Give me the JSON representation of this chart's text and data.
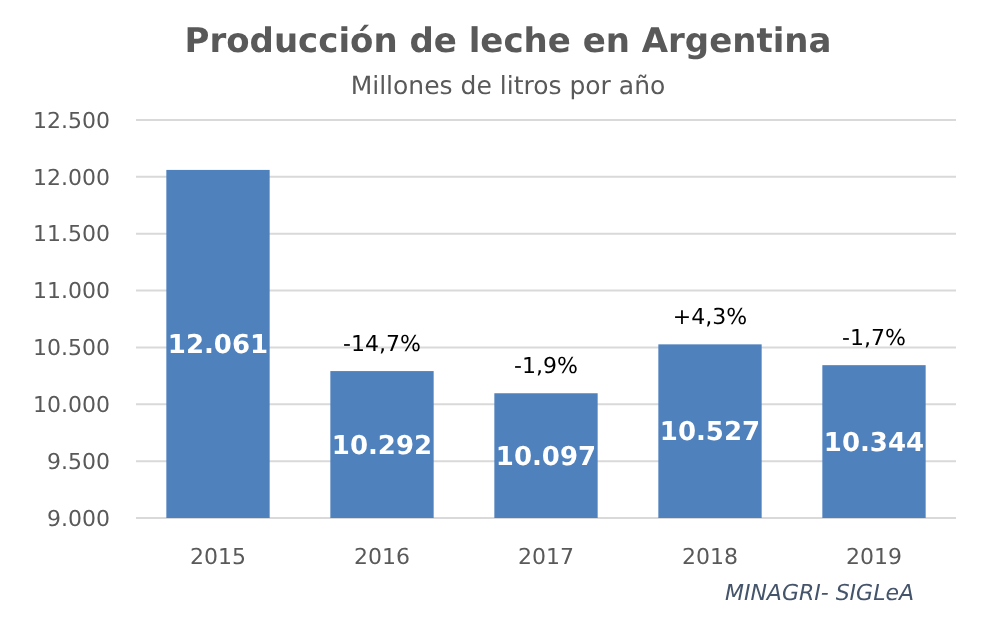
{
  "chart_data": {
    "type": "bar",
    "title": "Producción de leche en Argentina",
    "subtitle": "Millones de litros por año",
    "categories": [
      "2015",
      "2016",
      "2017",
      "2018",
      "2019"
    ],
    "values": [
      12061,
      10292,
      10097,
      10527,
      10344
    ],
    "color": "#4f81bd",
    "value_labels": [
      "12.061",
      "10.292",
      "10.097",
      "10.527",
      "10.344"
    ],
    "ylim": [
      9000,
      12500
    ],
    "yticks": [
      {
        "value": 9000,
        "label": "9.000"
      },
      {
        "value": 9500,
        "label": "9.500"
      },
      {
        "value": 10000,
        "label": "10.000"
      },
      {
        "value": 10500,
        "label": "10.500"
      },
      {
        "value": 11000,
        "label": "11.000"
      },
      {
        "value": 11500,
        "label": "11.500"
      },
      {
        "value": 12000,
        "label": "12.000"
      },
      {
        "value": 12500,
        "label": "12.500"
      }
    ],
    "grid": "y",
    "annotations": [
      {
        "text": "-14,7%",
        "x": "2016",
        "y": 10292
      },
      {
        "text": "-1,9%",
        "x": "2017",
        "y": 10097
      },
      {
        "text": "+4,3%",
        "x": "2018",
        "y": 10527
      },
      {
        "text": "-1,7%",
        "x": "2019",
        "y": 10344
      },
      "MINAGRI- SIGLeA"
    ]
  }
}
